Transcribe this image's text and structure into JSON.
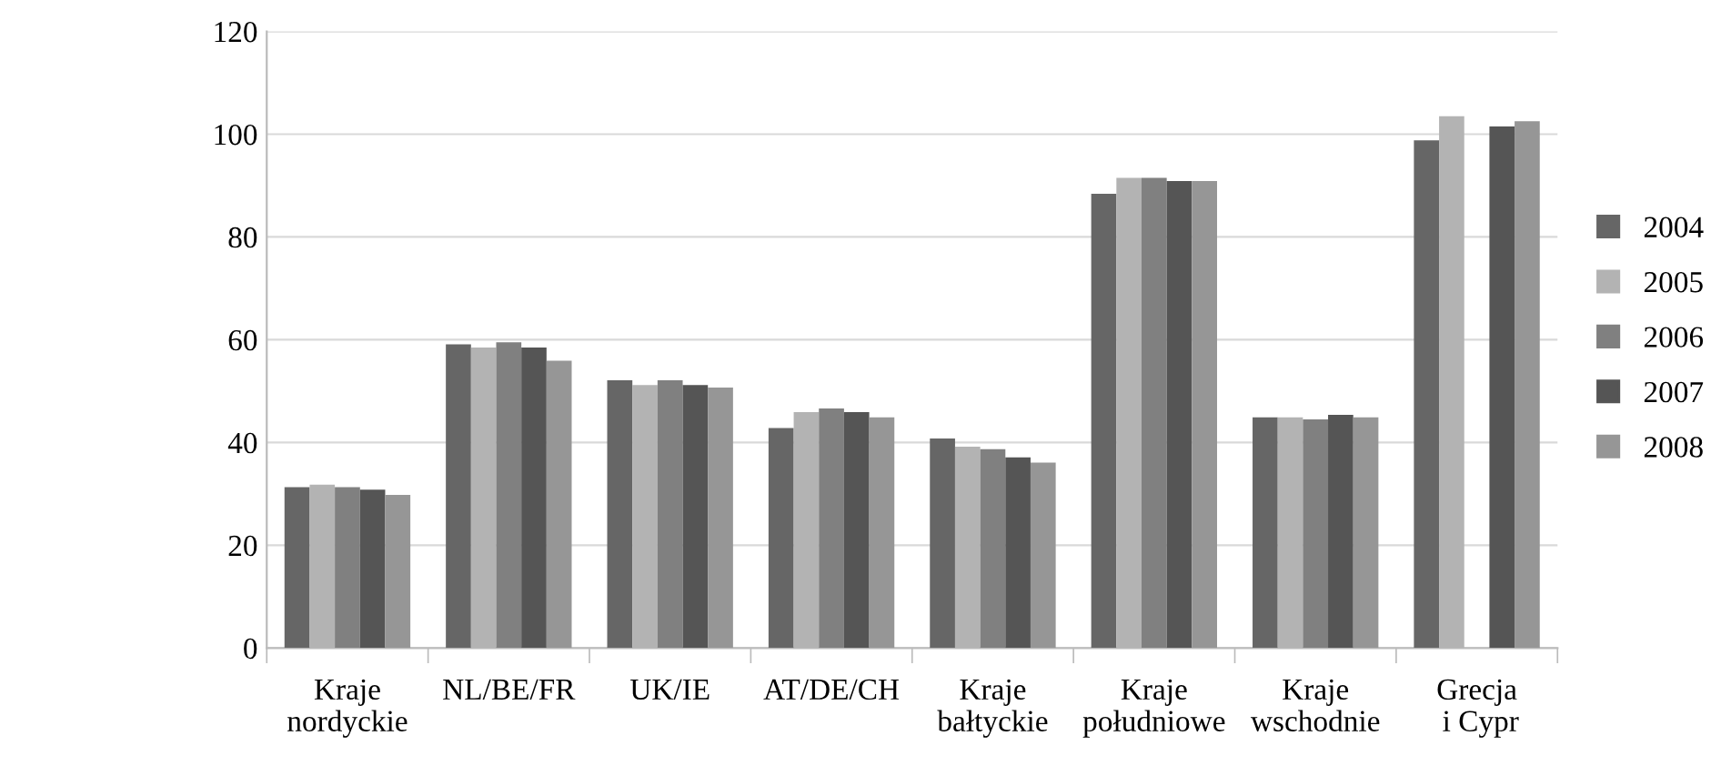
{
  "chart_data": {
    "type": "bar",
    "categories": [
      "Kraje\nnordyckie",
      "NL/BE/FR",
      "UK/IE",
      "AT/DE/CH",
      "Kraje\nbałtyckie",
      "Kraje\npołudniowe",
      "Kraje\nwschodnie",
      "Grecja\n i Cypr"
    ],
    "series": [
      {
        "name": "2004",
        "color": "#666666",
        "values": [
          31.3,
          59.1,
          52.1,
          42.8,
          40.8,
          88.4,
          44.9,
          98.8
        ]
      },
      {
        "name": "2005",
        "color": "#b3b3b3",
        "values": [
          31.8,
          58.5,
          51.2,
          45.9,
          39.2,
          91.5,
          44.9,
          103.5
        ]
      },
      {
        "name": "2006",
        "color": "#808080",
        "values": [
          31.3,
          59.5,
          52.1,
          46.6,
          38.7,
          91.5,
          44.5,
          null
        ]
      },
      {
        "name": "2007",
        "color": "#555555",
        "values": [
          30.8,
          58.5,
          51.2,
          45.9,
          37.1,
          90.9,
          45.4,
          101.5
        ]
      },
      {
        "name": "2008",
        "color": "#969696",
        "values": [
          29.8,
          55.9,
          50.7,
          44.9,
          36.1,
          90.9,
          44.9,
          102.5
        ]
      }
    ],
    "ylim": [
      0,
      120
    ],
    "yticks": [
      0,
      20,
      40,
      60,
      80,
      100,
      120
    ],
    "grid": "y",
    "legend": "right"
  }
}
